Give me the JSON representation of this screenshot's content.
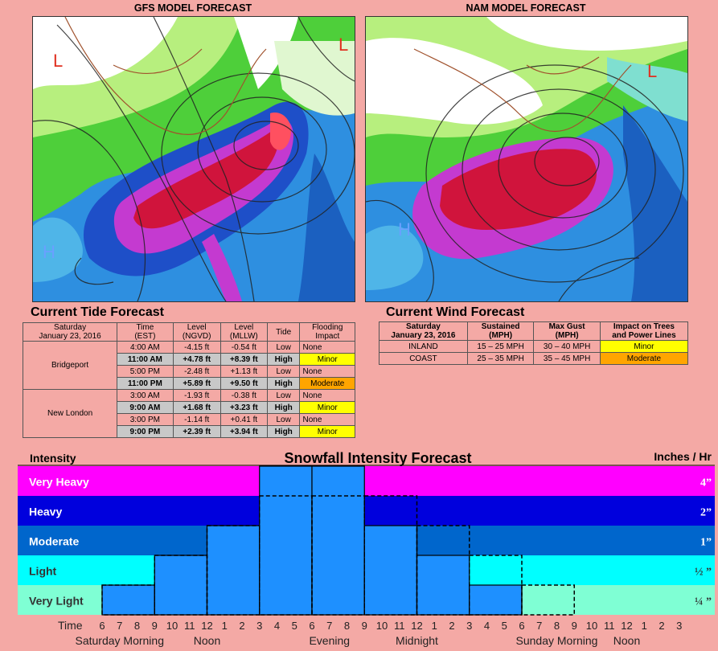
{
  "maps": {
    "gfs_title": "GFS MODEL FORECAST",
    "nam_title": "NAM MODEL FORECAST",
    "low_marker": "L",
    "high_marker": "H"
  },
  "tide": {
    "title": "Current Tide Forecast",
    "headers": [
      "Saturday\nJanuary 23, 2016",
      "Time\n(EST)",
      "Level\n(NGVD)",
      "Level\n(MLLW)",
      "Tide",
      "Flooding\nImpact"
    ],
    "stations": [
      {
        "name": "Bridgeport",
        "rows": [
          {
            "time": "4:00 AM",
            "ngvd": "-4.15 ft",
            "mllw": "-0.54 ft",
            "tide": "Low",
            "impact": "None",
            "level": "none"
          },
          {
            "time": "11:00 AM",
            "ngvd": "+4.78 ft",
            "mllw": "+8.39 ft",
            "tide": "High",
            "impact": "Minor",
            "level": "minor"
          },
          {
            "time": "5:00 PM",
            "ngvd": "-2.48 ft",
            "mllw": "+1.13 ft",
            "tide": "Low",
            "impact": "None",
            "level": "none"
          },
          {
            "time": "11:00 PM",
            "ngvd": "+5.89 ft",
            "mllw": "+9.50 ft",
            "tide": "High",
            "impact": "Moderate",
            "level": "moderate"
          }
        ]
      },
      {
        "name": "New London",
        "rows": [
          {
            "time": "3:00 AM",
            "ngvd": "-1.93 ft",
            "mllw": "-0.38 ft",
            "tide": "Low",
            "impact": "None",
            "level": "none"
          },
          {
            "time": "9:00 AM",
            "ngvd": "+1.68 ft",
            "mllw": "+3.23 ft",
            "tide": "High",
            "impact": "Minor",
            "level": "minor"
          },
          {
            "time": "3:00 PM",
            "ngvd": "-1.14 ft",
            "mllw": "+0.41 ft",
            "tide": "Low",
            "impact": "None",
            "level": "none"
          },
          {
            "time": "9:00 PM",
            "ngvd": "+2.39 ft",
            "mllw": "+3.94 ft",
            "tide": "High",
            "impact": "Minor",
            "level": "minor"
          }
        ]
      }
    ]
  },
  "wind": {
    "title": "Current Wind Forecast",
    "headers": [
      "Saturday\nJanuary 23, 2016",
      "Sustained\n(MPH)",
      "Max Gust\n(MPH)",
      "Impact on Trees\nand Power Lines"
    ],
    "rows": [
      {
        "area": "INLAND",
        "sustained": "15 – 25 MPH",
        "gust": "30 – 40 MPH",
        "impact": "Minor",
        "level": "minor"
      },
      {
        "area": "COAST",
        "sustained": "25 – 35 MPH",
        "gust": "35 – 45 MPH",
        "impact": "Moderate",
        "level": "moderate"
      }
    ]
  },
  "chart_data": {
    "type": "bar",
    "title": "Snowfall Intensity Forecast",
    "left_header": "Intensity",
    "right_header": "Inches / Hr",
    "axis_label": "Time",
    "bands": [
      {
        "name": "Very Light",
        "rate": "¼ ”",
        "color": "#7fffd4"
      },
      {
        "name": "Light",
        "rate": "½ ”",
        "color": "#00ffff"
      },
      {
        "name": "Moderate",
        "rate": "1”",
        "color": "#0066cc"
      },
      {
        "name": "Heavy",
        "rate": "2”",
        "color": "#0000dd"
      },
      {
        "name": "Very Heavy",
        "rate": "4”",
        "color": "#ff00ff"
      }
    ],
    "hour_ticks": [
      "6",
      "7",
      "8",
      "9",
      "10",
      "11",
      "12",
      "1",
      "2",
      "3",
      "4",
      "5",
      "6",
      "7",
      "8",
      "9",
      "10",
      "11",
      "12",
      "1",
      "2",
      "3",
      "4",
      "5",
      "6",
      "7",
      "8",
      "9",
      "10",
      "11",
      "12",
      "1",
      "2",
      "3"
    ],
    "period_labels": [
      {
        "text": "Saturday Morning",
        "tick": 1
      },
      {
        "text": "Noon",
        "tick": 6
      },
      {
        "text": "Evening",
        "tick": 13
      },
      {
        "text": "Midnight",
        "tick": 18
      },
      {
        "text": "Sunday Morning",
        "tick": 26
      },
      {
        "text": "Noon",
        "tick": 30
      }
    ],
    "intensity_scale": "0 = none, 1 = Very Light, 2 = Light, 3 = Moderate, 4 = Heavy, 5 = Very Heavy",
    "x_unit": "ticks from 6 AM Saturday; 1 tick = 1 hour",
    "forecast_bars": [
      {
        "start": 0,
        "end": 3,
        "intensity": 1
      },
      {
        "start": 3,
        "end": 6,
        "intensity": 2
      },
      {
        "start": 6,
        "end": 9,
        "intensity": 3
      },
      {
        "start": 9,
        "end": 12,
        "intensity": 5
      },
      {
        "start": 12,
        "end": 15,
        "intensity": 5
      },
      {
        "start": 15,
        "end": 18,
        "intensity": 3
      },
      {
        "start": 18,
        "end": 21,
        "intensity": 2
      },
      {
        "start": 21,
        "end": 24,
        "intensity": 1
      }
    ],
    "uncertainty_bars": [
      {
        "start": 0,
        "end": 3,
        "intensity": 1
      },
      {
        "start": 3,
        "end": 6,
        "intensity": 2
      },
      {
        "start": 6,
        "end": 9,
        "intensity": 3
      },
      {
        "start": 9,
        "end": 12,
        "intensity": 4
      },
      {
        "start": 12,
        "end": 15,
        "intensity": 4
      },
      {
        "start": 15,
        "end": 18,
        "intensity": 4
      },
      {
        "start": 18,
        "end": 21,
        "intensity": 3
      },
      {
        "start": 21,
        "end": 24,
        "intensity": 2
      },
      {
        "start": 24,
        "end": 27,
        "intensity": 1
      }
    ]
  }
}
